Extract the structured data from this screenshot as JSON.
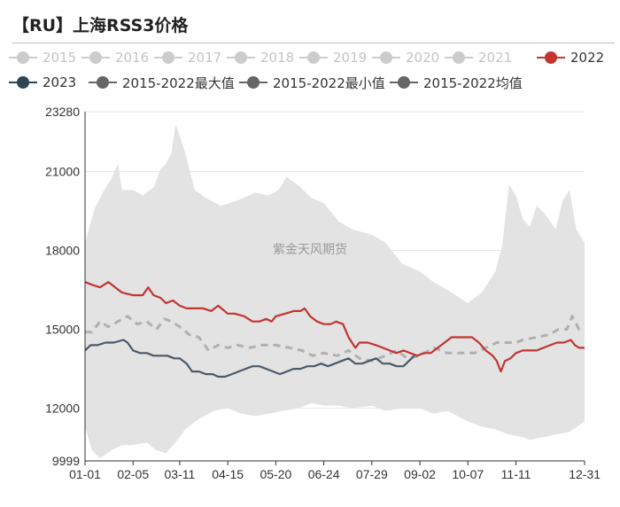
{
  "title": "【RU】上海RSS3价格",
  "watermark": "紫金天风期货",
  "legend": {
    "items": [
      {
        "label": "2015",
        "color": "#cccccc",
        "active": false
      },
      {
        "label": "2016",
        "color": "#cccccc",
        "active": false
      },
      {
        "label": "2017",
        "color": "#cccccc",
        "active": false
      },
      {
        "label": "2018",
        "color": "#cccccc",
        "active": false
      },
      {
        "label": "2019",
        "color": "#cccccc",
        "active": false
      },
      {
        "label": "2020",
        "color": "#cccccc",
        "active": false
      },
      {
        "label": "2021",
        "color": "#cccccc",
        "active": false
      },
      {
        "label": "2022",
        "color": "#c23531",
        "active": true
      },
      {
        "label": "2023",
        "color": "#2f4554",
        "active": true
      },
      {
        "label": "2015-2022最大值",
        "color": "#666666",
        "active": true
      },
      {
        "label": "2015-2022最小值",
        "color": "#666666",
        "active": true
      },
      {
        "label": "2015-2022均值",
        "color": "#666666",
        "active": true
      }
    ]
  },
  "chart_data": {
    "type": "line",
    "x_tick_labels": [
      "01-01",
      "02-05",
      "03-11",
      "04-15",
      "05-20",
      "06-24",
      "07-29",
      "09-02",
      "10-07",
      "11-11",
      "12-31"
    ],
    "y_ticks": [
      9999,
      12000,
      15000,
      18000,
      21000,
      23280
    ],
    "ylim": [
      9999,
      23280
    ],
    "xlim": [
      "01-01",
      "12-31"
    ],
    "grid": true,
    "legend_position": "top",
    "band": {
      "name": "2015-2022最大值 / 2015-2022最小值",
      "color": "#e3e3e3",
      "max": [
        [
          "01-01",
          18300
        ],
        [
          "01-08",
          19600
        ],
        [
          "01-15",
          20300
        ],
        [
          "01-20",
          20700
        ],
        [
          "01-25",
          21300
        ],
        [
          "01-28",
          20300
        ],
        [
          "02-05",
          20300
        ],
        [
          "02-12",
          20100
        ],
        [
          "02-20",
          20400
        ],
        [
          "02-25",
          21100
        ],
        [
          "03-01",
          21300
        ],
        [
          "03-05",
          21700
        ],
        [
          "03-08",
          22800
        ],
        [
          "03-12",
          22200
        ],
        [
          "03-15",
          21700
        ],
        [
          "03-22",
          20300
        ],
        [
          "03-30",
          20000
        ],
        [
          "04-10",
          19700
        ],
        [
          "04-22",
          19900
        ],
        [
          "05-05",
          20200
        ],
        [
          "05-15",
          20100
        ],
        [
          "05-22",
          20300
        ],
        [
          "05-28",
          20800
        ],
        [
          "06-05",
          20500
        ],
        [
          "06-15",
          20000
        ],
        [
          "06-24",
          19800
        ],
        [
          "07-05",
          19100
        ],
        [
          "07-15",
          18800
        ],
        [
          "07-29",
          18600
        ],
        [
          "08-08",
          18300
        ],
        [
          "08-20",
          17500
        ],
        [
          "09-02",
          17200
        ],
        [
          "09-12",
          16800
        ],
        [
          "09-22",
          16500
        ],
        [
          "10-07",
          16000
        ],
        [
          "10-17",
          16400
        ],
        [
          "10-27",
          17200
        ],
        [
          "11-01",
          18200
        ],
        [
          "11-06",
          20500
        ],
        [
          "11-11",
          20100
        ],
        [
          "11-16",
          19200
        ],
        [
          "11-21",
          18900
        ],
        [
          "11-26",
          19700
        ],
        [
          "12-02",
          19400
        ],
        [
          "12-10",
          18800
        ],
        [
          "12-15",
          19900
        ],
        [
          "12-20",
          20300
        ],
        [
          "12-25",
          18800
        ],
        [
          "12-31",
          18300
        ]
      ],
      "min": [
        [
          "01-01",
          11300
        ],
        [
          "01-06",
          10400
        ],
        [
          "01-12",
          10100
        ],
        [
          "01-20",
          10400
        ],
        [
          "01-28",
          10600
        ],
        [
          "02-05",
          10600
        ],
        [
          "02-15",
          10700
        ],
        [
          "02-22",
          10400
        ],
        [
          "03-01",
          10300
        ],
        [
          "03-08",
          10700
        ],
        [
          "03-15",
          11200
        ],
        [
          "03-25",
          11600
        ],
        [
          "04-05",
          11900
        ],
        [
          "04-15",
          12000
        ],
        [
          "04-25",
          11800
        ],
        [
          "05-05",
          11700
        ],
        [
          "05-15",
          11800
        ],
        [
          "05-25",
          11900
        ],
        [
          "06-05",
          12000
        ],
        [
          "06-15",
          12200
        ],
        [
          "06-24",
          12100
        ],
        [
          "07-05",
          12100
        ],
        [
          "07-15",
          12000
        ],
        [
          "07-29",
          12100
        ],
        [
          "08-08",
          11900
        ],
        [
          "08-20",
          12000
        ],
        [
          "09-02",
          12000
        ],
        [
          "09-12",
          11800
        ],
        [
          "09-22",
          11900
        ],
        [
          "10-07",
          11500
        ],
        [
          "10-17",
          11300
        ],
        [
          "10-27",
          11200
        ],
        [
          "11-06",
          11000
        ],
        [
          "11-16",
          10900
        ],
        [
          "11-21",
          10800
        ],
        [
          "12-01",
          10900
        ],
        [
          "12-10",
          11000
        ],
        [
          "12-20",
          11100
        ],
        [
          "12-31",
          11500
        ]
      ]
    },
    "series": [
      {
        "name": "2015-2022均值",
        "color": "#b0b0b0",
        "dashed": true,
        "points": [
          [
            "01-01",
            14900
          ],
          [
            "01-06",
            14900
          ],
          [
            "01-12",
            15300
          ],
          [
            "01-18",
            15100
          ],
          [
            "01-25",
            15300
          ],
          [
            "02-01",
            15500
          ],
          [
            "02-08",
            15200
          ],
          [
            "02-15",
            15300
          ],
          [
            "02-22",
            15000
          ],
          [
            "02-28",
            15400
          ],
          [
            "03-05",
            15300
          ],
          [
            "03-11",
            15100
          ],
          [
            "03-18",
            14800
          ],
          [
            "03-25",
            14700
          ],
          [
            "04-01",
            14200
          ],
          [
            "04-08",
            14400
          ],
          [
            "04-15",
            14300
          ],
          [
            "04-22",
            14400
          ],
          [
            "05-01",
            14300
          ],
          [
            "05-10",
            14400
          ],
          [
            "05-20",
            14400
          ],
          [
            "05-30",
            14300
          ],
          [
            "06-08",
            14200
          ],
          [
            "06-16",
            14000
          ],
          [
            "06-24",
            14100
          ],
          [
            "07-04",
            14000
          ],
          [
            "07-12",
            14200
          ],
          [
            "07-20",
            13900
          ],
          [
            "07-29",
            13800
          ],
          [
            "08-08",
            14000
          ],
          [
            "08-16",
            14200
          ],
          [
            "08-24",
            13900
          ],
          [
            "09-02",
            14000
          ],
          [
            "09-12",
            14300
          ],
          [
            "09-22",
            14100
          ],
          [
            "10-02",
            14100
          ],
          [
            "10-12",
            14100
          ],
          [
            "10-20",
            14300
          ],
          [
            "10-28",
            14500
          ],
          [
            "11-06",
            14500
          ],
          [
            "11-11",
            14500
          ],
          [
            "11-16",
            14600
          ],
          [
            "11-26",
            14700
          ],
          [
            "12-05",
            14800
          ],
          [
            "12-12",
            15000
          ],
          [
            "12-18",
            15000
          ],
          [
            "12-22",
            15500
          ],
          [
            "12-27",
            15000
          ],
          [
            "12-31",
            15000
          ]
        ]
      },
      {
        "name": "2022",
        "color": "#c23531",
        "dashed": false,
        "points": [
          [
            "01-01",
            16800
          ],
          [
            "01-06",
            16700
          ],
          [
            "01-12",
            16600
          ],
          [
            "01-18",
            16800
          ],
          [
            "01-23",
            16600
          ],
          [
            "01-28",
            16400
          ],
          [
            "02-05",
            16300
          ],
          [
            "02-12",
            16300
          ],
          [
            "02-16",
            16600
          ],
          [
            "02-20",
            16300
          ],
          [
            "02-25",
            16200
          ],
          [
            "03-01",
            16000
          ],
          [
            "03-06",
            16100
          ],
          [
            "03-11",
            15900
          ],
          [
            "03-16",
            15800
          ],
          [
            "03-22",
            15800
          ],
          [
            "03-28",
            15800
          ],
          [
            "04-03",
            15700
          ],
          [
            "04-08",
            15900
          ],
          [
            "04-15",
            15600
          ],
          [
            "04-20",
            15600
          ],
          [
            "04-27",
            15500
          ],
          [
            "05-03",
            15300
          ],
          [
            "05-08",
            15300
          ],
          [
            "05-13",
            15400
          ],
          [
            "05-17",
            15300
          ],
          [
            "05-20",
            15500
          ],
          [
            "05-27",
            15600
          ],
          [
            "06-02",
            15700
          ],
          [
            "06-07",
            15700
          ],
          [
            "06-10",
            15800
          ],
          [
            "06-14",
            15500
          ],
          [
            "06-19",
            15300
          ],
          [
            "06-24",
            15200
          ],
          [
            "06-29",
            15200
          ],
          [
            "07-03",
            15300
          ],
          [
            "07-08",
            15200
          ],
          [
            "07-12",
            14700
          ],
          [
            "07-17",
            14300
          ],
          [
            "07-20",
            14500
          ],
          [
            "07-26",
            14500
          ],
          [
            "08-01",
            14400
          ],
          [
            "08-06",
            14300
          ],
          [
            "08-11",
            14200
          ],
          [
            "08-16",
            14100
          ],
          [
            "08-21",
            14200
          ],
          [
            "08-26",
            14100
          ],
          [
            "08-31",
            14000
          ],
          [
            "09-05",
            14100
          ],
          [
            "09-10",
            14100
          ],
          [
            "09-15",
            14300
          ],
          [
            "09-20",
            14500
          ],
          [
            "09-25",
            14700
          ],
          [
            "09-30",
            14700
          ],
          [
            "10-05",
            14700
          ],
          [
            "10-10",
            14700
          ],
          [
            "10-15",
            14500
          ],
          [
            "10-20",
            14200
          ],
          [
            "10-25",
            14000
          ],
          [
            "10-28",
            13800
          ],
          [
            "10-31",
            13400
          ],
          [
            "11-03",
            13800
          ],
          [
            "11-07",
            13900
          ],
          [
            "11-11",
            14100
          ],
          [
            "11-16",
            14200
          ],
          [
            "11-21",
            14200
          ],
          [
            "11-26",
            14200
          ],
          [
            "12-01",
            14300
          ],
          [
            "12-06",
            14400
          ],
          [
            "12-11",
            14500
          ],
          [
            "12-16",
            14500
          ],
          [
            "12-21",
            14600
          ],
          [
            "12-24",
            14400
          ],
          [
            "12-27",
            14300
          ],
          [
            "12-31",
            14300
          ]
        ]
      },
      {
        "name": "2023",
        "color": "#4a5a68",
        "dashed": false,
        "points": [
          [
            "01-01",
            14200
          ],
          [
            "01-05",
            14400
          ],
          [
            "01-10",
            14400
          ],
          [
            "01-16",
            14500
          ],
          [
            "01-22",
            14500
          ],
          [
            "01-29",
            14600
          ],
          [
            "02-01",
            14500
          ],
          [
            "02-05",
            14200
          ],
          [
            "02-10",
            14100
          ],
          [
            "02-15",
            14100
          ],
          [
            "02-20",
            14000
          ],
          [
            "02-25",
            14000
          ],
          [
            "03-02",
            14000
          ],
          [
            "03-07",
            13900
          ],
          [
            "03-11",
            13900
          ],
          [
            "03-16",
            13700
          ],
          [
            "03-20",
            13400
          ],
          [
            "03-25",
            13400
          ],
          [
            "03-30",
            13300
          ],
          [
            "04-04",
            13300
          ],
          [
            "04-08",
            13200
          ],
          [
            "04-13",
            13200
          ],
          [
            "04-18",
            13300
          ],
          [
            "04-23",
            13400
          ],
          [
            "04-28",
            13500
          ],
          [
            "05-03",
            13600
          ],
          [
            "05-08",
            13600
          ],
          [
            "05-13",
            13500
          ],
          [
            "05-18",
            13400
          ],
          [
            "05-23",
            13300
          ],
          [
            "05-28",
            13400
          ],
          [
            "06-02",
            13500
          ],
          [
            "06-07",
            13500
          ],
          [
            "06-12",
            13600
          ],
          [
            "06-17",
            13600
          ],
          [
            "06-22",
            13700
          ],
          [
            "06-27",
            13600
          ],
          [
            "07-02",
            13700
          ],
          [
            "07-07",
            13800
          ],
          [
            "07-12",
            13900
          ],
          [
            "07-17",
            13700
          ],
          [
            "07-22",
            13700
          ],
          [
            "07-27",
            13800
          ],
          [
            "08-01",
            13900
          ],
          [
            "08-06",
            13700
          ],
          [
            "08-11",
            13700
          ],
          [
            "08-16",
            13600
          ],
          [
            "08-21",
            13600
          ],
          [
            "08-25",
            13800
          ],
          [
            "08-29",
            14000
          ]
        ]
      }
    ]
  }
}
